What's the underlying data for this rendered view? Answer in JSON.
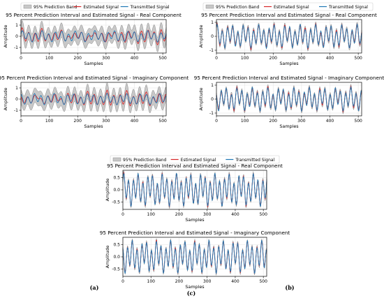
{
  "legend": {
    "band": "95% Prediction Band",
    "estimated": "Estimated Signal",
    "transmitted": "Transmitted Signal"
  },
  "colors": {
    "band_fill": "#c8c8c8",
    "band_edge": "#8c8c8c",
    "estimated": "#d62728",
    "transmitted": "#1f77b4",
    "grid": "#e6e6e6"
  },
  "captions": {
    "a": "(a)",
    "b": "(b)",
    "c": "(c)"
  },
  "chart_data": [
    {
      "panel": "a",
      "component": "real",
      "type": "line",
      "title": "95 Percent Prediction Interval and Estimated Signal - Real Component",
      "xlabel": "Samples",
      "ylabel": "Amplitude",
      "xlim": [
        0,
        512
      ],
      "ylim": [
        -1.5,
        1.5
      ],
      "xticks": [
        0,
        100,
        200,
        300,
        400,
        500
      ],
      "yticks": [
        -1,
        0,
        1
      ],
      "grid": true,
      "legend_position": "top",
      "cycles": 22,
      "amplitude": 0.45,
      "band_halfwidth": 0.65,
      "estimate_error": 0.3,
      "phase": 0.3
    },
    {
      "panel": "a",
      "component": "imaginary",
      "type": "line",
      "title": "95 Percent Prediction Interval and Estimated Signal - Imaginary Component",
      "xlabel": "Samples",
      "ylabel": "Amplitude",
      "xlim": [
        0,
        512
      ],
      "ylim": [
        -1.5,
        1.5
      ],
      "xticks": [
        0,
        100,
        200,
        300,
        400,
        500
      ],
      "yticks": [
        -1,
        0,
        1
      ],
      "grid": true,
      "cycles": 22,
      "amplitude": 0.45,
      "band_halfwidth": 0.65,
      "estimate_error": 0.3,
      "phase": 1.3
    },
    {
      "panel": "b",
      "component": "real",
      "type": "line",
      "title": "95 Percent Prediction Interval and Estimated Signal - Real Component",
      "xlabel": "Samples",
      "ylabel": "Amplitude",
      "xlim": [
        0,
        512
      ],
      "ylim": [
        -1.2,
        1.2
      ],
      "xticks": [
        0,
        100,
        200,
        300,
        400,
        500
      ],
      "yticks": [
        -1,
        0,
        1
      ],
      "grid": true,
      "legend_position": "top",
      "cycles": 28,
      "amplitude": 0.75,
      "band_halfwidth": 0.15,
      "estimate_error": 0.12,
      "phase": 0.7
    },
    {
      "panel": "b",
      "component": "imaginary",
      "type": "line",
      "title": "95 Percent Prediction Interval and Estimated Signal - Imaginary Component",
      "xlabel": "Samples",
      "ylabel": "Amplitude",
      "xlim": [
        0,
        512
      ],
      "ylim": [
        -1.2,
        1.2
      ],
      "xticks": [
        0,
        100,
        200,
        300,
        400,
        500
      ],
      "yticks": [
        -1,
        0,
        1
      ],
      "grid": true,
      "cycles": 28,
      "amplitude": 0.75,
      "band_halfwidth": 0.15,
      "estimate_error": 0.12,
      "phase": 2.1
    },
    {
      "panel": "c",
      "component": "real",
      "type": "line",
      "title": "95 Percent Prediction Interval and Estimated Signal - Real Component",
      "xlabel": "Samples",
      "ylabel": "Amplitude",
      "xlim": [
        0,
        512
      ],
      "ylim": [
        -0.8,
        0.8
      ],
      "xticks": [
        0,
        100,
        200,
        300,
        400,
        500
      ],
      "yticks": [
        -0.5,
        0.0,
        0.5
      ],
      "grid": true,
      "legend_position": "top",
      "cycles": 30,
      "amplitude": 0.6,
      "band_halfwidth": 0.07,
      "estimate_error": 0.05,
      "phase": 0.4
    },
    {
      "panel": "c",
      "component": "imaginary",
      "type": "line",
      "title": "95 Percent Prediction Interval and Estimated Signal - Imaginary Component",
      "xlabel": "Samples",
      "ylabel": "Amplitude",
      "xlim": [
        0,
        512
      ],
      "ylim": [
        -0.8,
        0.8
      ],
      "xticks": [
        0,
        100,
        200,
        300,
        400,
        500
      ],
      "yticks": [
        -0.5,
        0.0,
        0.5
      ],
      "grid": true,
      "cycles": 30,
      "amplitude": 0.6,
      "band_halfwidth": 0.07,
      "estimate_error": 0.05,
      "phase": 1.8
    }
  ]
}
